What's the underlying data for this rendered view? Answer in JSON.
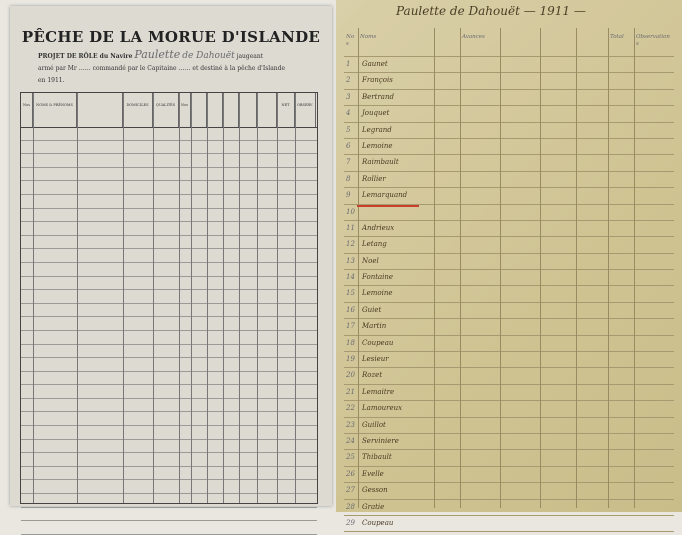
{
  "left_page": {
    "title": "PÊCHE DE LA MORUE D'ISLANDE",
    "subtitle_line1": "PROJET DE RÔLE du Navire",
    "ship_name": "Paulette",
    "port": "de Dahouët",
    "tonnage": "jaugeant",
    "line2": "armé par Mr",
    "line2b": "commandé par le Capitaine",
    "line2c": "et destiné à la pêche d'Islande",
    "year": "en 1911.",
    "columns": [
      "Nos",
      "NOMS & PRÉNOMS",
      "",
      "DOMICILES",
      "QUALITÉS",
      "Nos",
      "",
      "",
      "",
      "",
      "",
      "NET",
      "OBSERV."
    ]
  },
  "right_page": {
    "header": "Paulette de Dahouët — 1911 —",
    "columns": [
      "Nos",
      "Noms",
      "",
      "Avances",
      "",
      "",
      "",
      "Total",
      "Observations"
    ],
    "rows": [
      {
        "n": "1",
        "name": "Gaunet"
      },
      {
        "n": "2",
        "name": "François"
      },
      {
        "n": "3",
        "name": "Bertrand"
      },
      {
        "n": "4",
        "name": "Jouquet"
      },
      {
        "n": "5",
        "name": "Legrand"
      },
      {
        "n": "6",
        "name": "Lemoine"
      },
      {
        "n": "7",
        "name": "Raimbault"
      },
      {
        "n": "8",
        "name": "Rollier"
      },
      {
        "n": "9",
        "name": "Lemarquand"
      },
      {
        "n": "10",
        "name": ""
      },
      {
        "n": "11",
        "name": "Andrieux"
      },
      {
        "n": "12",
        "name": "Letang"
      },
      {
        "n": "13",
        "name": "Noel"
      },
      {
        "n": "14",
        "name": "Fontaine"
      },
      {
        "n": "15",
        "name": "Lemoine"
      },
      {
        "n": "16",
        "name": "Guiet"
      },
      {
        "n": "17",
        "name": "Martin"
      },
      {
        "n": "18",
        "name": "Coupeau"
      },
      {
        "n": "19",
        "name": "Lesieur"
      },
      {
        "n": "20",
        "name": "Rozet"
      },
      {
        "n": "21",
        "name": "Lemaitre"
      },
      {
        "n": "22",
        "name": "Lamoureux"
      },
      {
        "n": "23",
        "name": "Guillot"
      },
      {
        "n": "24",
        "name": "Serviniere"
      },
      {
        "n": "25",
        "name": "Thibault"
      },
      {
        "n": "26",
        "name": "Evelle"
      },
      {
        "n": "27",
        "name": "Gesson"
      },
      {
        "n": "28",
        "name": "Gratie"
      },
      {
        "n": "29",
        "name": "Coupeau"
      }
    ]
  }
}
